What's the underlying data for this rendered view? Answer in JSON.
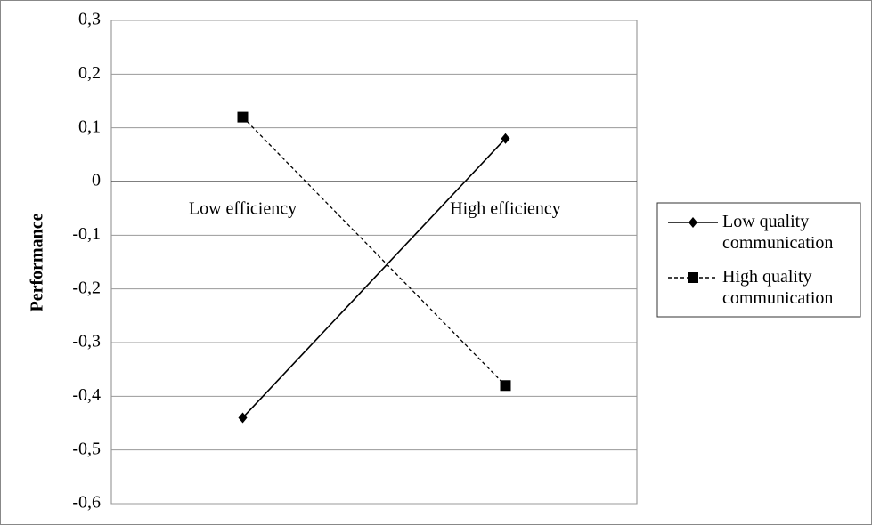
{
  "chart_data": {
    "type": "line",
    "y_label": "Performance",
    "categories": [
      "Low efficiency",
      "High efficiency"
    ],
    "series": [
      {
        "name": "Low quality communication",
        "color": "#000000",
        "marker": "diamond",
        "dash": "solid",
        "values": [
          -0.44,
          0.08
        ]
      },
      {
        "name": "High quality communication",
        "color": "#000000",
        "marker": "square",
        "dash": "dashed",
        "values": [
          0.12,
          -0.38
        ]
      }
    ],
    "ylim": [
      -0.6,
      0.3
    ],
    "yticks": [
      {
        "value": 0.3,
        "label": "0,3"
      },
      {
        "value": 0.2,
        "label": "0,2"
      },
      {
        "value": 0.1,
        "label": "0,1"
      },
      0,
      {
        "value": -0.1,
        "label": "-0,1"
      },
      {
        "value": -0.2,
        "label": "-0,2"
      },
      {
        "value": -0.3,
        "label": "-0,3"
      },
      {
        "value": -0.4,
        "label": "-0,4"
      },
      {
        "value": -0.5,
        "label": "-0,5"
      },
      {
        "value": -0.6,
        "label": "-0,6"
      }
    ],
    "grid": true,
    "legend": "right"
  }
}
